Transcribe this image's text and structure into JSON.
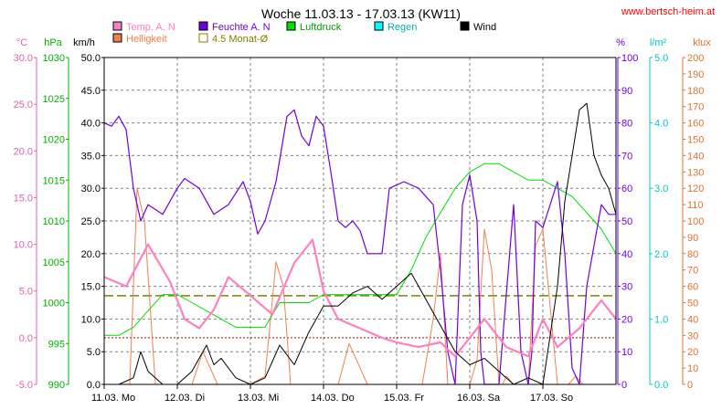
{
  "chart_data": {
    "type": "line",
    "title": "Woche 11.03.13 - 17.03.13 (KW11)",
    "source": "www.bertsch-heim.at",
    "x_ticks": [
      "11.03.  Mo",
      "12.03.  Di",
      "13.03.  Mi",
      "14.03.  Do",
      "15.03.  Fr",
      "16.03.  Sa",
      "17.03.  So"
    ],
    "axes": {
      "temp": {
        "unit": "°C",
        "min": -5,
        "max": 30,
        "ticks": [
          "30.0",
          "25.0",
          "20.0",
          "15.0",
          "10.0",
          "5.0",
          "0.0",
          "-5.0"
        ],
        "color": "#e060b0"
      },
      "press": {
        "unit": "hPa",
        "min": 990,
        "max": 1030,
        "ticks": [
          "1030",
          "1025",
          "1020",
          "1015",
          "1010",
          "1005",
          "1000",
          "995",
          "990"
        ],
        "color": "#00b000"
      },
      "wind": {
        "unit": "km/h",
        "min": 0,
        "max": 50,
        "ticks": [
          "50.0",
          "45.0",
          "40.0",
          "35.0",
          "30.0",
          "25.0",
          "20.0",
          "15.0",
          "10.0",
          "5.0",
          "0.0"
        ],
        "color": "#000000"
      },
      "hum": {
        "unit": "%",
        "min": 0,
        "max": 100,
        "ticks": [
          "100",
          "90",
          "80",
          "70",
          "60",
          "50",
          "40",
          "30",
          "20",
          "10",
          "0"
        ],
        "color": "#7000e0"
      },
      "rain": {
        "unit": "l/m²",
        "min": 0,
        "max": 5,
        "ticks": [
          "5.0",
          "4.0",
          "3.0",
          "2.0",
          "1.0",
          "0.0"
        ],
        "color": "#00c8c8"
      },
      "light": {
        "unit": "klux",
        "min": 0,
        "max": 200,
        "ticks": [
          "200",
          "190",
          "180",
          "170",
          "160",
          "150",
          "140",
          "130",
          "120",
          "110",
          "100",
          "90",
          "80",
          "70",
          "60",
          "50",
          "40",
          "30",
          "20",
          "10",
          "0"
        ],
        "color": "#e07030"
      }
    },
    "legend": [
      {
        "label": "Temp. A. N",
        "color": "#ff80c0"
      },
      {
        "label": "Feuchte A. N",
        "color": "#7000e0"
      },
      {
        "label": "Luftdruck",
        "color": "#00e000"
      },
      {
        "label": "Regen",
        "color": "#00ffff"
      },
      {
        "label": "Wind",
        "color": "#000000"
      },
      {
        "label": "Helligkeit",
        "color": "#f08050"
      },
      {
        "label": "4.5 Monat-Ø",
        "color": "#808000"
      }
    ],
    "reference_lines": {
      "temp_avg_c": 4.5,
      "temp_zero_c": 0
    },
    "series": {
      "temp_days": [
        0,
        0.3,
        0.6,
        0.9,
        1.1,
        1.3,
        1.5,
        1.7,
        2.0,
        2.3,
        2.6,
        2.85,
        3.0,
        3.2,
        3.5,
        3.8,
        4.0,
        4.3,
        4.6,
        4.8,
        5.0,
        5.2,
        5.5,
        5.8,
        6.0,
        6.2,
        6.5,
        6.8,
        7.0
      ],
      "temp_c": [
        6.5,
        5.5,
        10,
        6,
        2,
        1,
        3,
        6.5,
        4.5,
        2.5,
        8,
        10.5,
        5,
        2,
        1,
        0,
        -0.5,
        -1,
        -0.5,
        -2,
        0,
        2,
        -1,
        -2,
        2,
        -1,
        1,
        4,
        2
      ],
      "hum_days": [
        0,
        0.1,
        0.2,
        0.3,
        0.4,
        0.5,
        0.6,
        0.8,
        1.0,
        1.1,
        1.3,
        1.5,
        1.7,
        1.9,
        2.0,
        2.1,
        2.2,
        2.35,
        2.5,
        2.6,
        2.7,
        2.8,
        2.9,
        3.0,
        3.1,
        3.2,
        3.3,
        3.4,
        3.5,
        3.6,
        3.8,
        3.9,
        4.1,
        4.3,
        4.5,
        4.6,
        4.7,
        4.8,
        4.9,
        5.0,
        5.1,
        5.15,
        5.2,
        5.4,
        5.6,
        5.7,
        5.8,
        5.85,
        5.9,
        6.0,
        6.2,
        6.3,
        6.4,
        6.5,
        6.6,
        6.8,
        6.9,
        7.0
      ],
      "hum_pct": [
        80,
        79,
        82,
        78,
        60,
        50,
        55,
        52,
        60,
        63,
        60,
        52,
        55,
        62,
        56,
        46,
        50,
        62,
        82,
        84,
        76,
        73,
        82,
        79,
        65,
        50,
        48,
        50,
        47,
        40,
        40,
        60,
        62,
        60,
        55,
        35,
        10,
        0,
        55,
        64,
        50,
        10,
        0,
        0,
        55,
        10,
        0,
        10,
        50,
        48,
        62,
        40,
        5,
        0,
        30,
        55,
        52,
        52
      ],
      "press_days": [
        0,
        0.2,
        0.4,
        0.6,
        0.8,
        1.0,
        1.2,
        1.4,
        1.6,
        1.8,
        2.0,
        2.2,
        2.4,
        2.6,
        2.8,
        3.0,
        3.2,
        3.4,
        3.6,
        3.8,
        4.0,
        4.2,
        4.4,
        4.6,
        4.8,
        5.0,
        5.2,
        5.4,
        5.6,
        5.8,
        6.0,
        6.2,
        6.4,
        6.6,
        6.8,
        7.0
      ],
      "press_hpa": [
        996,
        996,
        997,
        999,
        1001,
        1001,
        1000,
        999,
        998,
        997,
        997,
        997,
        1000,
        1000,
        1000,
        1001,
        1001,
        1001,
        1001,
        1001,
        1001,
        1004,
        1008,
        1011,
        1014,
        1016,
        1017,
        1017,
        1016,
        1015,
        1015,
        1014,
        1013,
        1011,
        1009,
        1006
      ],
      "wind_days": [
        0,
        0.2,
        0.4,
        0.5,
        0.6,
        0.8,
        1.0,
        1.2,
        1.4,
        1.5,
        1.6,
        1.8,
        2.0,
        2.2,
        2.4,
        2.6,
        2.8,
        3.0,
        3.2,
        3.4,
        3.6,
        3.8,
        4.0,
        4.2,
        4.4,
        4.6,
        4.8,
        5.0,
        5.2,
        5.4,
        5.6,
        5.8,
        6.0,
        6.2,
        6.3,
        6.4,
        6.5,
        6.6,
        6.7,
        6.8,
        6.9,
        7.0
      ],
      "wind_kmh": [
        0,
        0,
        1,
        5,
        2,
        0,
        0,
        2,
        6,
        3,
        4,
        1,
        0,
        1,
        6,
        3,
        8,
        12,
        12,
        14,
        15,
        13,
        15,
        17,
        13,
        9,
        5,
        3,
        4,
        2,
        0,
        1,
        0,
        15,
        28,
        35,
        42,
        43,
        35,
        32,
        30,
        26
      ],
      "light_days": [
        0,
        0.35,
        0.45,
        0.55,
        0.7,
        0.8,
        0.9,
        1.2,
        1.35,
        1.45,
        1.55,
        1.7,
        1.85,
        2.0,
        2.2,
        2.35,
        2.45,
        2.55,
        2.7,
        2.85,
        3.0,
        3.2,
        3.35,
        3.5,
        3.6,
        3.7,
        3.85,
        4.0,
        4.2,
        4.35,
        4.5,
        4.6,
        4.7,
        4.85,
        5.0,
        5.1,
        5.2,
        5.3,
        5.4,
        5.45,
        5.5,
        5.6,
        5.7,
        5.8,
        5.9,
        6.0,
        6.2,
        6.35,
        6.45,
        6.55,
        6.7,
        6.85,
        7.0
      ],
      "light_klux": [
        0,
        0,
        120,
        100,
        0,
        0,
        0,
        0,
        20,
        10,
        0,
        0,
        0,
        0,
        5,
        75,
        60,
        0,
        0,
        0,
        0,
        0,
        25,
        10,
        0,
        0,
        0,
        0,
        0,
        0,
        40,
        80,
        0,
        0,
        0,
        15,
        95,
        70,
        0,
        0,
        5,
        0,
        0,
        0,
        85,
        95,
        0,
        0,
        5,
        0,
        0,
        0,
        0
      ]
    }
  }
}
